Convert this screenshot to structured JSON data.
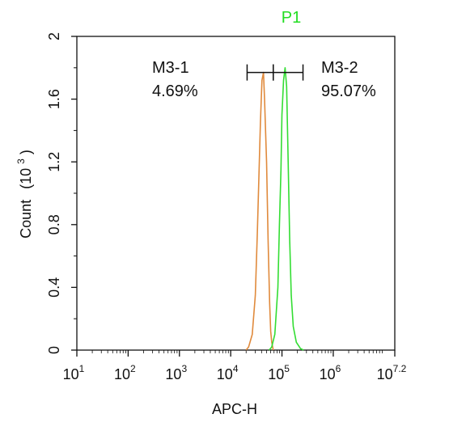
{
  "chart_data": {
    "type": "histogram-overlay",
    "title": "P1",
    "title_color": "#22dd22",
    "xlabel": "APC-H",
    "ylabel": "Count",
    "ylabel_unit_base": "(10",
    "ylabel_unit_exp": "3",
    "ylabel_unit_close": ")",
    "x_scale": "log10",
    "xlim": [
      1,
      7.2
    ],
    "ylim": [
      0,
      2
    ],
    "x_ticks": [
      {
        "base": "10",
        "exp": "1",
        "value": 1
      },
      {
        "base": "10",
        "exp": "2",
        "value": 2
      },
      {
        "base": "10",
        "exp": "3",
        "value": 3
      },
      {
        "base": "10",
        "exp": "4",
        "value": 4
      },
      {
        "base": "10",
        "exp": "5",
        "value": 5
      },
      {
        "base": "10",
        "exp": "6",
        "value": 6
      },
      {
        "base": "10",
        "exp": "7.2",
        "value": 7.2
      }
    ],
    "y_ticks": [
      "0",
      "0.4",
      "0.8",
      "1.2",
      "1.6",
      "2"
    ],
    "y_tick_values": [
      0,
      0.4,
      0.8,
      1.2,
      1.6,
      2
    ],
    "grid": false,
    "series": [
      {
        "color": "#e08a3c",
        "x": [
          4.3,
          4.35,
          4.42,
          4.48,
          4.52,
          4.55,
          4.58,
          4.61,
          4.64,
          4.66,
          4.7,
          4.73,
          4.76,
          4.78,
          4.8,
          4.83
        ],
        "y": [
          0,
          0.02,
          0.1,
          0.35,
          0.75,
          1.1,
          1.45,
          1.72,
          1.77,
          1.6,
          1.2,
          0.7,
          0.3,
          0.12,
          0.05,
          0
        ]
      },
      {
        "color": "#33dd33",
        "x": [
          4.75,
          4.8,
          4.86,
          4.92,
          4.95,
          4.98,
          5.0,
          5.03,
          5.06,
          5.09,
          5.12,
          5.15,
          5.18,
          5.22,
          5.28,
          5.36,
          5.42
        ],
        "y": [
          0,
          0.02,
          0.1,
          0.4,
          0.8,
          1.15,
          1.5,
          1.72,
          1.8,
          1.68,
          1.2,
          0.7,
          0.35,
          0.15,
          0.05,
          0.01,
          0
        ]
      }
    ],
    "gates": [
      {
        "name": "M3-1",
        "percent": "4.69%",
        "x_start": 4.32,
        "x_end": 4.83,
        "y": 1.77
      },
      {
        "name": "M3-2",
        "percent": "95.07%",
        "x_start": 4.83,
        "x_end": 5.41,
        "y": 1.77
      }
    ]
  }
}
